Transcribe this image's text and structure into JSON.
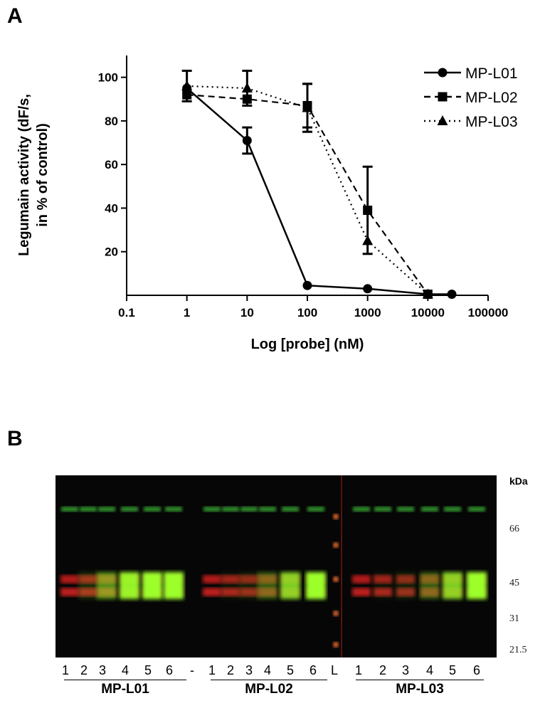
{
  "panel_a_label": "A",
  "panel_b_label": "B",
  "chart_data": {
    "type": "line",
    "xscale": "log",
    "xlabel": "Log [probe] (nM)",
    "ylabel_line1": "Legumain activity (dF/s,",
    "ylabel_line2": "in % of control)",
    "xlim": [
      0.1,
      100000
    ],
    "ylim": [
      0,
      110
    ],
    "x_ticks": [
      "0.1",
      "1",
      "10",
      "100",
      "1000",
      "10000",
      "100000"
    ],
    "y_ticks": [
      "20",
      "40",
      "60",
      "80",
      "100"
    ],
    "legend_position": "top-right",
    "series": [
      {
        "name": "MP-L01",
        "marker": "circle",
        "line": "solid",
        "points": [
          {
            "x": 1,
            "y": 95,
            "err": 0
          },
          {
            "x": 10,
            "y": 71,
            "err": 6
          },
          {
            "x": 100,
            "y": 4.5,
            "err": 0
          },
          {
            "x": 1000,
            "y": 3,
            "err": 0
          },
          {
            "x": 10000,
            "y": 0.5,
            "err": 0
          },
          {
            "x": 25000,
            "y": 0.5,
            "err": 0
          }
        ]
      },
      {
        "name": "MP-L02",
        "marker": "square",
        "line": "dashed",
        "points": [
          {
            "x": 1,
            "y": 92,
            "err": 0
          },
          {
            "x": 10,
            "y": 90,
            "err": 0
          },
          {
            "x": 100,
            "y": 87,
            "err": 10
          },
          {
            "x": 1000,
            "y": 39,
            "err": 20
          },
          {
            "x": 10000,
            "y": 0.5,
            "err": 0
          }
        ]
      },
      {
        "name": "MP-L03",
        "marker": "triangle",
        "line": "dotted",
        "points": [
          {
            "x": 1,
            "y": 96,
            "err": 7
          },
          {
            "x": 10,
            "y": 95,
            "err": 8
          },
          {
            "x": 100,
            "y": 86,
            "err": 11
          },
          {
            "x": 1000,
            "y": 25,
            "err": 0
          },
          {
            "x": 10000,
            "y": 0.5,
            "err": 0
          }
        ]
      }
    ]
  },
  "gel": {
    "kda_label": "kDa",
    "markers": [
      "66",
      "45",
      "31",
      "21.5"
    ],
    "lanes": [
      "1",
      "2",
      "3",
      "4",
      "5",
      "6",
      "-",
      "1",
      "2",
      "3",
      "4",
      "5",
      "6",
      "L",
      "1",
      "2",
      "3",
      "4",
      "5",
      "6"
    ],
    "groups": [
      "MP-L01",
      "MP-L02",
      "MP-L03"
    ]
  }
}
